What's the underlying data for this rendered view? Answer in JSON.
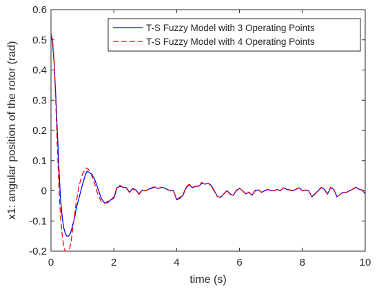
{
  "chart_data": {
    "type": "line",
    "xlabel": "time (s)",
    "ylabel": "x1: angular position of the rotor (rad)",
    "xlim": [
      0,
      10
    ],
    "ylim": [
      -0.2,
      0.6
    ],
    "xticks": [
      0,
      2,
      4,
      6,
      8,
      10
    ],
    "yticks": [
      -0.2,
      -0.1,
      0,
      0.1,
      0.2,
      0.3,
      0.4,
      0.5,
      0.6
    ],
    "grid": false,
    "legend_position": "top-right",
    "series": [
      {
        "name": "T-S Fuzzy Model with 3 Operating Points",
        "color": "#0000ff",
        "dash": "solid",
        "x": [
          0,
          0.05,
          0.1,
          0.15,
          0.2,
          0.25,
          0.3,
          0.35,
          0.4,
          0.45,
          0.5,
          0.55,
          0.6,
          0.65,
          0.7,
          0.75,
          0.8,
          0.9,
          1.0,
          1.1,
          1.15,
          1.2,
          1.3,
          1.4,
          1.5,
          1.6,
          1.7,
          1.8,
          1.9,
          2.0,
          2.1,
          2.2,
          2.3,
          2.4,
          2.5,
          2.6,
          2.7,
          2.8,
          2.9,
          3.0,
          3.1,
          3.2,
          3.3,
          3.4,
          3.5,
          3.6,
          3.7,
          3.8,
          3.9,
          4.0,
          4.1,
          4.2,
          4.3,
          4.4,
          4.5,
          4.6,
          4.7,
          4.8,
          4.9,
          5.0,
          5.1,
          5.2,
          5.3,
          5.4,
          5.5,
          5.6,
          5.7,
          5.8,
          5.9,
          6.0,
          6.1,
          6.2,
          6.3,
          6.4,
          6.5,
          6.6,
          6.7,
          6.8,
          6.9,
          7.0,
          7.1,
          7.2,
          7.3,
          7.4,
          7.5,
          7.6,
          7.7,
          7.8,
          7.9,
          8.0,
          8.1,
          8.2,
          8.3,
          8.4,
          8.5,
          8.6,
          8.7,
          8.8,
          8.9,
          9.0,
          9.1,
          9.2,
          9.3,
          9.4,
          9.5,
          9.6,
          9.7,
          9.8,
          9.9,
          10.0
        ],
        "y": [
          0.52,
          0.49,
          0.42,
          0.32,
          0.2,
          0.08,
          -0.02,
          -0.08,
          -0.12,
          -0.14,
          -0.15,
          -0.15,
          -0.145,
          -0.13,
          -0.11,
          -0.09,
          -0.06,
          -0.02,
          0.02,
          0.055,
          0.065,
          0.062,
          0.055,
          0.035,
          0.005,
          -0.025,
          -0.04,
          -0.04,
          -0.03,
          -0.025,
          0.01,
          0.015,
          0.012,
          0.01,
          -0.005,
          0.008,
          0.003,
          -0.01,
          0.002,
          0.0,
          0.005,
          0.008,
          0.012,
          0.008,
          0.01,
          0.01,
          0.004,
          0.0,
          0.0,
          -0.03,
          -0.025,
          -0.015,
          0.01,
          0.02,
          0.01,
          0.015,
          0.015,
          0.025,
          0.022,
          0.025,
          0.018,
          0.0,
          -0.02,
          -0.022,
          -0.01,
          0.0,
          -0.01,
          -0.015,
          0.0,
          0.008,
          0.0,
          -0.01,
          -0.005,
          -0.015,
          0.0,
          0.003,
          -0.005,
          0.0,
          0.004,
          0.0,
          0.0,
          0.004,
          0.0,
          0.01,
          0.005,
          0.003,
          0.0,
          0.005,
          0.01,
          0.0,
          0.002,
          0.0,
          -0.02,
          -0.01,
          0.0,
          0.01,
          0.005,
          -0.01,
          0.01,
          0.005,
          -0.02,
          -0.012,
          -0.005,
          -0.005,
          0.0,
          0.005,
          0.012,
          0.005,
          0.003,
          -0.01
        ],
        "visible_extent": [
          0,
          10
        ]
      },
      {
        "name": "T-S Fuzzy Model with 4 Operating Points",
        "color": "#ff0000",
        "dash": "dashed",
        "x": [
          0,
          0.05,
          0.1,
          0.15,
          0.2,
          0.25,
          0.3,
          0.35,
          0.4,
          0.45,
          0.5,
          0.55,
          0.6,
          0.65,
          0.7,
          0.75,
          0.8,
          0.9,
          1.0,
          1.1,
          1.15,
          1.2,
          1.3,
          1.4,
          1.5,
          1.6,
          1.7,
          1.8,
          1.9,
          2.0,
          2.1,
          2.2,
          2.3,
          2.4,
          2.5,
          2.6,
          2.7,
          2.8,
          2.9,
          3.0,
          3.1,
          3.2,
          3.3,
          3.4,
          3.5,
          3.6,
          3.7,
          3.8,
          3.9,
          4.0,
          4.1,
          4.2,
          4.3,
          4.4,
          4.5,
          4.6,
          4.7,
          4.8,
          4.9,
          5.0,
          5.1,
          5.2,
          5.3,
          5.4,
          5.5,
          5.6,
          5.7,
          5.8,
          5.9,
          6.0,
          6.1,
          6.2,
          6.3,
          6.4,
          6.5,
          6.6,
          6.7,
          6.8,
          6.9,
          7.0,
          7.1,
          7.2,
          7.3,
          7.4,
          7.5,
          7.6,
          7.7,
          7.8,
          7.9,
          8.0,
          8.1,
          8.2,
          8.3,
          8.4,
          8.5,
          8.6,
          8.7,
          8.8,
          8.9,
          9.0,
          9.1,
          9.2,
          9.3,
          9.4,
          9.5,
          9.6,
          9.7,
          9.8,
          9.9,
          10.0
        ],
        "y": [
          0.52,
          0.5,
          0.43,
          0.3,
          0.15,
          0.02,
          -0.08,
          -0.14,
          -0.18,
          -0.2,
          -0.2,
          -0.2,
          -0.19,
          -0.16,
          -0.12,
          -0.08,
          -0.04,
          0.02,
          0.055,
          0.075,
          0.075,
          0.07,
          0.05,
          0.02,
          -0.015,
          -0.035,
          -0.042,
          -0.035,
          -0.03,
          -0.02,
          0.012,
          0.018,
          0.01,
          0.008,
          -0.006,
          0.006,
          0.002,
          -0.012,
          0.0,
          0.0,
          0.004,
          0.01,
          0.013,
          0.006,
          0.012,
          0.01,
          0.005,
          0.0,
          -0.002,
          -0.028,
          -0.022,
          -0.012,
          0.012,
          0.022,
          0.012,
          0.014,
          0.016,
          0.028,
          0.02,
          0.025,
          0.016,
          -0.002,
          -0.02,
          -0.02,
          -0.01,
          0.0,
          -0.012,
          -0.015,
          0.002,
          0.008,
          0.0,
          -0.012,
          -0.004,
          -0.014,
          0.002,
          0.004,
          -0.006,
          0.001,
          0.005,
          0.0,
          0.0,
          0.005,
          0.0,
          0.01,
          0.004,
          0.002,
          0.0,
          0.006,
          0.01,
          0.0,
          0.003,
          0.0,
          -0.02,
          -0.012,
          0.0,
          0.012,
          0.004,
          -0.012,
          0.012,
          0.004,
          -0.02,
          -0.012,
          -0.004,
          -0.006,
          0.0,
          0.006,
          0.01,
          0.006,
          0.002,
          -0.01
        ],
        "visible_extent": [
          0,
          10
        ]
      }
    ]
  },
  "colors": {
    "axis": "#262626",
    "background": "#ffffff"
  }
}
